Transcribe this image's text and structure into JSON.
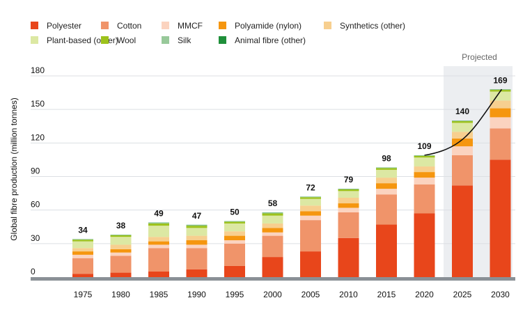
{
  "chart_data": {
    "type": "bar",
    "stacked": true,
    "ylabel": "Global fibre production (million tonnes)",
    "ylim": [
      0,
      180
    ],
    "yticks": [
      0,
      30,
      60,
      90,
      120,
      150,
      180
    ],
    "grid": true,
    "legend_position": "top",
    "projected_label": "Projected",
    "projected_categories": [
      "2025",
      "2030"
    ],
    "trend_line": "2020 to 2030",
    "categories": [
      "1975",
      "1980",
      "1985",
      "1990",
      "1995",
      "2000",
      "2005",
      "2010",
      "2015",
      "2020",
      "2025",
      "2030"
    ],
    "totals": [
      "34",
      "38",
      "49",
      "47",
      "50",
      "58",
      "72",
      "79",
      "98",
      "109",
      "140",
      "169"
    ],
    "series": [
      {
        "name": "Polyester",
        "color": "#e8461b",
        "values": [
          3,
          4,
          5,
          7,
          10,
          18,
          23,
          35,
          47,
          57,
          82,
          105
        ]
      },
      {
        "name": "Cotton",
        "color": "#f0946a",
        "values": [
          14,
          15,
          21,
          19,
          20,
          19,
          28,
          23,
          27,
          26,
          27,
          28
        ]
      },
      {
        "name": "MMCF",
        "color": "#fbd3bf",
        "values": [
          3,
          3,
          3,
          3,
          3,
          3,
          4,
          4,
          5,
          6,
          8,
          10
        ]
      },
      {
        "name": "Polyamide (nylon)",
        "color": "#f5960f",
        "values": [
          3,
          3,
          3,
          4,
          4,
          4,
          4,
          4,
          5,
          5,
          7,
          8
        ]
      },
      {
        "name": "Synthetics (other)",
        "color": "#f7cf8f",
        "values": [
          3,
          4,
          4,
          4,
          4,
          4,
          5,
          5,
          5,
          5,
          6,
          7
        ]
      },
      {
        "name": "Plant-based (other)",
        "color": "#dce8a3",
        "values": [
          6,
          7,
          10,
          7,
          7,
          7,
          6,
          6,
          7,
          8,
          8,
          8
        ]
      },
      {
        "name": "Wool",
        "color": "#9dc21c",
        "values": [
          1.5,
          1.5,
          2,
          2,
          1.5,
          2,
          1.5,
          1.5,
          1.5,
          1.5,
          1.5,
          1.5
        ]
      },
      {
        "name": "Silk",
        "color": "#98c99a",
        "values": [
          0.3,
          0.3,
          0.5,
          0.5,
          0.3,
          0.5,
          0.3,
          0.3,
          0.3,
          0.3,
          0.3,
          0.3
        ]
      },
      {
        "name": "Animal fibre (other)",
        "color": "#1f8f3a",
        "values": [
          0.2,
          0.2,
          0.3,
          0.3,
          0.2,
          0.3,
          0.2,
          0.2,
          0.2,
          0.2,
          0.2,
          0.2
        ]
      }
    ]
  }
}
